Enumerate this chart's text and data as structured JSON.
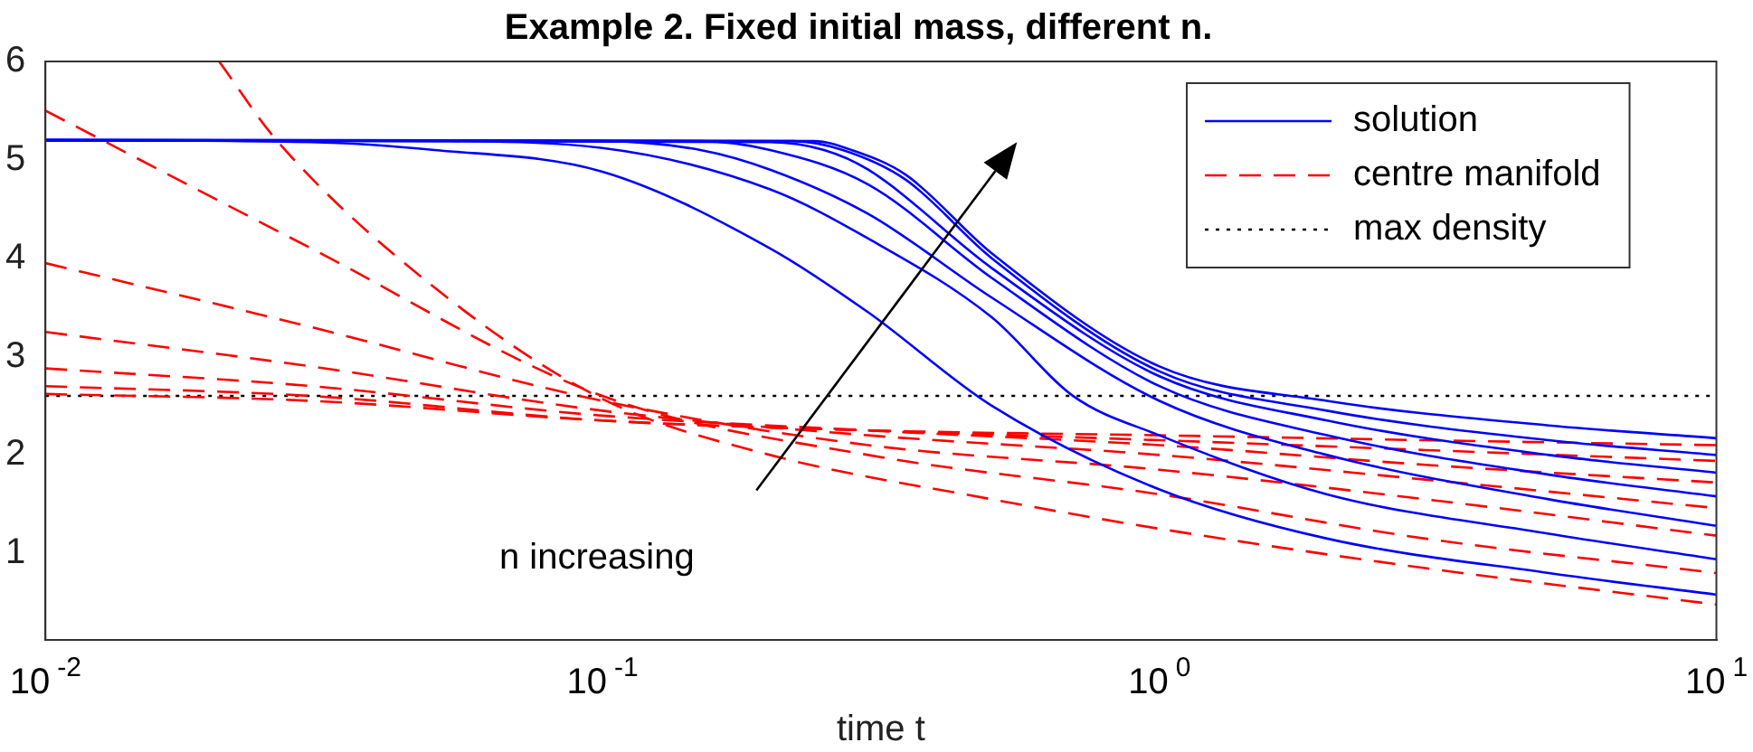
{
  "chart_data": {
    "type": "line",
    "title": "Example 2. Fixed initial mass, different n.",
    "xlabel": "time t",
    "log": "x",
    "xlim": [
      0.01,
      10
    ],
    "xticks": [
      {
        "value": 0.01,
        "label": "10$^{-2}$"
      },
      {
        "value": 0.1,
        "label": "10$^{-1}$"
      },
      {
        "value": 1,
        "label": "10$^{0}$"
      },
      {
        "value": 10,
        "label": "10$^{1}$"
      }
    ],
    "ylim": [
      0.12,
      6
    ],
    "yticks": [
      1,
      2,
      3,
      4,
      5,
      6
    ],
    "grid": false,
    "legend": "top right",
    "marker": "none",
    "annotations": [
      "n increasing"
    ],
    "series": [
      {
        "name": "solution",
        "color": "#0000ff",
        "line_style": "solid",
        "x": [
          0.01,
          0.03,
          0.05,
          0.1,
          0.2,
          0.3,
          0.5,
          1,
          2,
          5,
          10
        ],
        "values": [
          5.2,
          5.18,
          5.1,
          4.88,
          4.1,
          3.45,
          2.5,
          1.65,
          1.15,
          0.8,
          0.58
        ]
      },
      {
        "color": "#0000ff",
        "line_style": "solid",
        "x": [
          0.01,
          0.05,
          0.1,
          0.2,
          0.3,
          0.5,
          0.7,
          1,
          2,
          5,
          10
        ],
        "values": [
          5.2,
          5.19,
          5.12,
          4.7,
          4.2,
          3.4,
          2.6,
          2.2,
          1.6,
          1.2,
          0.94
        ]
      },
      {
        "color": "#0000ff",
        "line_style": "solid",
        "x": [
          0.01,
          0.1,
          0.15,
          0.2,
          0.3,
          0.5,
          1,
          2,
          5,
          10
        ],
        "values": [
          5.2,
          5.19,
          5.1,
          4.9,
          4.45,
          3.6,
          2.55,
          2.0,
          1.55,
          1.28
        ]
      },
      {
        "color": "#0000ff",
        "line_style": "solid",
        "x": [
          0.01,
          0.15,
          0.2,
          0.3,
          0.5,
          1,
          2,
          5,
          10
        ],
        "values": [
          5.2,
          5.19,
          5.1,
          4.75,
          3.8,
          2.7,
          2.2,
          1.8,
          1.58
        ]
      },
      {
        "color": "#0000ff",
        "line_style": "solid",
        "x": [
          0.01,
          0.2,
          0.25,
          0.3,
          0.5,
          1,
          2,
          5,
          10
        ],
        "values": [
          5.2,
          5.18,
          5.1,
          4.9,
          3.9,
          2.8,
          2.35,
          2.0,
          1.82
        ]
      },
      {
        "color": "#0000ff",
        "line_style": "solid",
        "x": [
          0.01,
          0.22,
          0.27,
          0.35,
          0.5,
          1,
          2,
          5,
          10
        ],
        "values": [
          5.2,
          5.19,
          5.1,
          4.8,
          4.0,
          2.85,
          2.45,
          2.15,
          2.0
        ]
      },
      {
        "color": "#0000ff",
        "line_style": "solid",
        "x": [
          0.01,
          0.24,
          0.28,
          0.35,
          0.5,
          1,
          2,
          5,
          10
        ],
        "values": [
          5.2,
          5.19,
          5.1,
          4.85,
          4.05,
          2.9,
          2.55,
          2.3,
          2.17
        ]
      },
      {
        "name": "centre manifold",
        "color": "#ff0000",
        "line_style": "dashed",
        "x": [
          0.0205,
          0.026,
          0.05,
          0.1,
          0.2,
          0.5,
          1,
          3,
          10
        ],
        "values": [
          6,
          5.2,
          3.7,
          2.57,
          2.0,
          1.55,
          1.25,
          0.85,
          0.48
        ]
      },
      {
        "color": "#ff0000",
        "line_style": "dashed",
        "x": [
          0.01,
          0.03,
          0.1,
          0.3,
          1,
          3,
          10
        ],
        "values": [
          5.5,
          4.1,
          2.6,
          2.0,
          1.6,
          1.15,
          0.8
        ]
      },
      {
        "color": "#ff0000",
        "line_style": "dashed",
        "x": [
          0.01,
          0.03,
          0.1,
          0.3,
          1,
          3,
          10
        ],
        "values": [
          3.95,
          3.3,
          2.55,
          2.1,
          1.85,
          1.55,
          1.18
        ]
      },
      {
        "color": "#ff0000",
        "line_style": "dashed",
        "x": [
          0.01,
          0.03,
          0.1,
          0.3,
          1,
          3,
          10
        ],
        "values": [
          3.25,
          2.9,
          2.45,
          2.2,
          2.0,
          1.75,
          1.46
        ]
      },
      {
        "color": "#ff0000",
        "line_style": "dashed",
        "x": [
          0.01,
          0.03,
          0.1,
          0.3,
          1,
          3,
          10
        ],
        "values": [
          2.88,
          2.7,
          2.4,
          2.25,
          2.1,
          1.9,
          1.72
        ]
      },
      {
        "color": "#ff0000",
        "line_style": "dashed",
        "x": [
          0.01,
          0.03,
          0.1,
          0.3,
          1,
          3,
          10
        ],
        "values": [
          2.7,
          2.6,
          2.35,
          2.25,
          2.15,
          2.05,
          1.94
        ]
      },
      {
        "color": "#ff0000",
        "line_style": "dashed",
        "x": [
          0.01,
          0.03,
          0.1,
          0.3,
          1,
          3,
          10
        ],
        "values": [
          2.62,
          2.55,
          2.35,
          2.25,
          2.2,
          2.15,
          2.1
        ]
      },
      {
        "name": "max density",
        "color": "#000000",
        "line_style": "dotted",
        "x": [
          0.01,
          10
        ],
        "values": [
          2.6,
          2.6
        ]
      }
    ]
  }
}
